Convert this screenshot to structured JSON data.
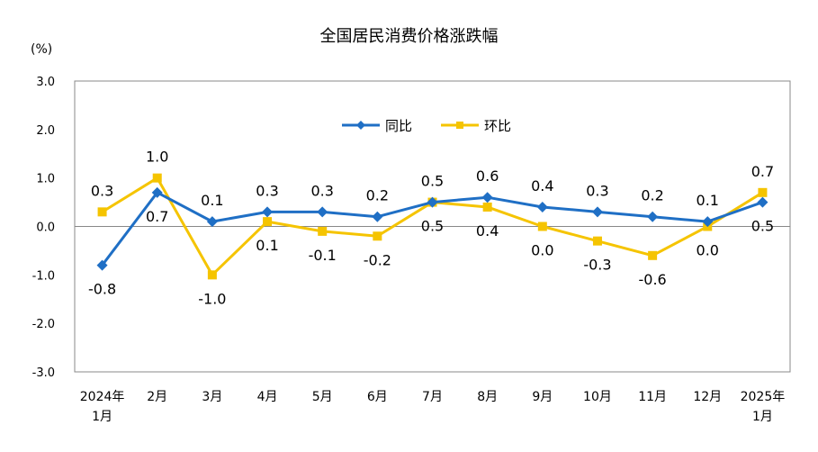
{
  "chart_data": {
    "type": "line",
    "title": "全国居民消费价格涨跌幅",
    "ylabel": "(%)",
    "xlabel": "",
    "ylim": [
      -3.0,
      3.0
    ],
    "yticks": [
      "3.0",
      "2.0",
      "1.0",
      "0.0",
      "-1.0",
      "-2.0",
      "-3.0"
    ],
    "ytick_values": [
      3,
      2,
      1,
      0,
      -1,
      -2,
      -3
    ],
    "categories": [
      [
        "2024年",
        "1月"
      ],
      [
        "2月"
      ],
      [
        "3月"
      ],
      [
        "4月"
      ],
      [
        "5月"
      ],
      [
        "6月"
      ],
      [
        "7月"
      ],
      [
        "8月"
      ],
      [
        "9月"
      ],
      [
        "10月"
      ],
      [
        "11月"
      ],
      [
        "12月"
      ],
      [
        "2025年",
        "1月"
      ]
    ],
    "legend_position": "top-center",
    "grid": false,
    "series": [
      {
        "name": "同比",
        "color": "#1f6fc5",
        "marker": "diamond",
        "values": [
          -0.8,
          0.7,
          0.1,
          0.3,
          0.3,
          0.2,
          0.5,
          0.6,
          0.4,
          0.3,
          0.2,
          0.1,
          0.5
        ]
      },
      {
        "name": "环比",
        "color": "#f5c400",
        "marker": "square",
        "values": [
          0.3,
          1.0,
          -1.0,
          0.1,
          -0.1,
          -0.2,
          0.5,
          0.4,
          0.0,
          -0.3,
          -0.6,
          0.0,
          0.7
        ]
      }
    ]
  }
}
